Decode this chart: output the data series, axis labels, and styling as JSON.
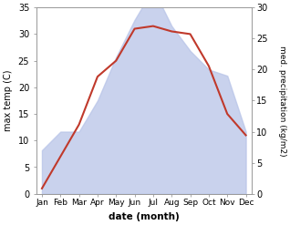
{
  "months": [
    "Jan",
    "Feb",
    "Mar",
    "Apr",
    "May",
    "Jun",
    "Jul",
    "Aug",
    "Sep",
    "Oct",
    "Nov",
    "Dec"
  ],
  "temperature": [
    1.0,
    7.0,
    13.0,
    22.0,
    25.0,
    31.0,
    31.5,
    30.5,
    30.0,
    24.0,
    15.0,
    11.0
  ],
  "precipitation": [
    7.0,
    10.0,
    10.0,
    15.0,
    22.0,
    28.0,
    33.0,
    27.0,
    23.0,
    20.0,
    19.0,
    10.0
  ],
  "temp_ylim": [
    0,
    35
  ],
  "precip_ylim": [
    0,
    30
  ],
  "temp_yticks": [
    0,
    5,
    10,
    15,
    20,
    25,
    30,
    35
  ],
  "precip_yticks": [
    0,
    5,
    10,
    15,
    20,
    25,
    30
  ],
  "xlabel": "date (month)",
  "ylabel_left": "max temp (C)",
  "ylabel_right": "med. precipitation (kg/m2)",
  "line_color": "#c0392b",
  "fill_color": "#b8c4e8",
  "fill_alpha": 0.75,
  "background_color": "#ffffff",
  "line_width": 1.5
}
